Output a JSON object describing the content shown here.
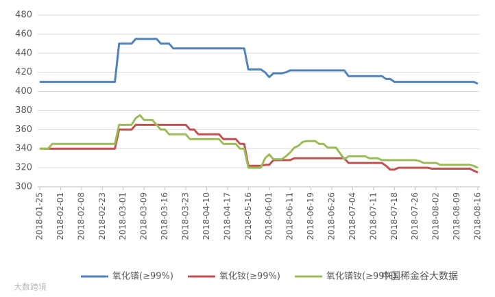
{
  "chart_data": {
    "type": "line",
    "categories": [
      "2018-01-25",
      null,
      null,
      null,
      null,
      "2018-02-01",
      null,
      null,
      null,
      null,
      "2018-02-08",
      null,
      null,
      null,
      null,
      "2018-02-23",
      null,
      null,
      null,
      null,
      "2018-03-01",
      null,
      null,
      null,
      null,
      "2018-03-09",
      null,
      null,
      null,
      null,
      "2018-03-16",
      null,
      null,
      null,
      null,
      "2018-03-23",
      null,
      null,
      null,
      null,
      "2018-04-10",
      null,
      null,
      null,
      null,
      "2018-04-17",
      null,
      null,
      null,
      null,
      "2018-05-16",
      null,
      null,
      null,
      null,
      "2018-06-01",
      null,
      null,
      null,
      null,
      "2018-06-11",
      null,
      null,
      null,
      null,
      "2018-06-19",
      null,
      null,
      null,
      null,
      "2018-06-26",
      null,
      null,
      null,
      null,
      "2018-07-04",
      null,
      null,
      null,
      null,
      "2018-07-11",
      null,
      null,
      null,
      null,
      "2018-07-18",
      null,
      null,
      null,
      null,
      "2018-07-26",
      null,
      null,
      null,
      null,
      "2018-08-02",
      null,
      null,
      null,
      null,
      "2018-08-09",
      null,
      null,
      null,
      null,
      "2018-08-16"
    ],
    "series": [
      {
        "name": "氧化镨(≥99%)",
        "color": "#4f81bd",
        "values": [
          410,
          410,
          410,
          410,
          410,
          410,
          410,
          410,
          410,
          410,
          410,
          410,
          410,
          410,
          410,
          410,
          410,
          410,
          410,
          450,
          450,
          450,
          450,
          455,
          455,
          455,
          455,
          455,
          455,
          450,
          450,
          450,
          445,
          445,
          445,
          445,
          445,
          445,
          445,
          445,
          445,
          445,
          445,
          445,
          445,
          445,
          445,
          445,
          445,
          445,
          423,
          423,
          423,
          423,
          420,
          415,
          419,
          419,
          419,
          420,
          422,
          422,
          422,
          422,
          422,
          422,
          422,
          422,
          422,
          422,
          422,
          422,
          422,
          422,
          416,
          416,
          416,
          416,
          416,
          416,
          416,
          416,
          416,
          413,
          413,
          410,
          410,
          410,
          410,
          410,
          410,
          410,
          410,
          410,
          410,
          410,
          410,
          410,
          410,
          410,
          410,
          410,
          410,
          410,
          410,
          408
        ]
      },
      {
        "name": "氧化钕(≥99%)",
        "color": "#c0504d",
        "values": [
          340,
          340,
          340,
          340,
          340,
          340,
          340,
          340,
          340,
          340,
          340,
          340,
          340,
          340,
          340,
          340,
          340,
          340,
          340,
          360,
          360,
          360,
          360,
          365,
          365,
          365,
          365,
          365,
          365,
          365,
          365,
          365,
          365,
          365,
          365,
          365,
          360,
          360,
          355,
          355,
          355,
          355,
          355,
          355,
          350,
          350,
          350,
          350,
          345,
          345,
          322,
          322,
          322,
          322,
          323,
          323,
          328,
          328,
          328,
          328,
          328,
          330,
          330,
          330,
          330,
          330,
          330,
          330,
          330,
          330,
          330,
          330,
          330,
          330,
          325,
          325,
          325,
          325,
          325,
          325,
          325,
          325,
          325,
          322,
          318,
          318,
          320,
          320,
          320,
          320,
          320,
          320,
          320,
          320,
          319,
          319,
          319,
          319,
          319,
          319,
          319,
          319,
          319,
          319,
          317,
          315
        ]
      },
      {
        "name": "氧化镨钕(≥99%)",
        "color": "#9bbb59",
        "values": [
          340,
          340,
          340,
          345,
          345,
          345,
          345,
          345,
          345,
          345,
          345,
          345,
          345,
          345,
          345,
          345,
          345,
          345,
          345,
          365,
          365,
          365,
          365,
          372,
          375,
          370,
          370,
          370,
          365,
          360,
          360,
          355,
          355,
          355,
          355,
          355,
          350,
          350,
          350,
          350,
          350,
          350,
          350,
          350,
          345,
          345,
          345,
          345,
          340,
          340,
          320,
          320,
          320,
          320,
          330,
          334,
          329,
          329,
          329,
          332,
          336,
          341,
          343,
          347,
          348,
          348,
          348,
          345,
          345,
          341,
          341,
          341,
          335,
          329,
          332,
          332,
          332,
          332,
          332,
          330,
          330,
          330,
          328,
          328,
          328,
          328,
          328,
          328,
          328,
          328,
          328,
          327,
          325,
          325,
          325,
          325,
          323,
          323,
          323,
          323,
          323,
          323,
          323,
          323,
          322,
          320
        ]
      }
    ],
    "ylim": [
      300,
      480
    ],
    "yticks": [
      300,
      320,
      340,
      360,
      380,
      400,
      420,
      440,
      460,
      480
    ],
    "grid": true,
    "legend": "bottom"
  },
  "watermarks": [
    "大数跨境",
    "中国稀金谷大数据"
  ]
}
